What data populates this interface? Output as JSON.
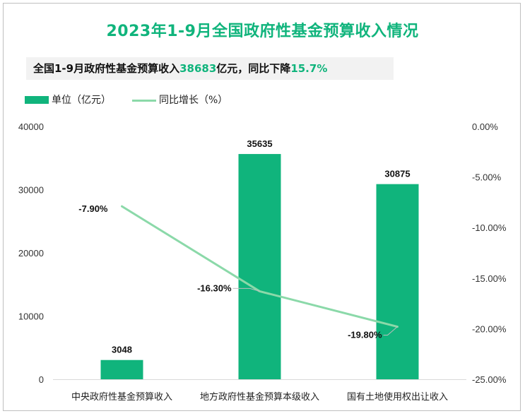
{
  "title_prefix": "2023年1-9月全国政府性基金预算收入情况",
  "subtitle": {
    "part1": "全国1-9月政府性基金预算收入",
    "value": "38683",
    "part2": "亿元，同比下降",
    "pct": "15.7%"
  },
  "colors": {
    "bar": "#10b47c",
    "line": "#8bd9a9",
    "accent": "#10b47c"
  },
  "chart_data": {
    "type": "bar",
    "categories": [
      "中央政府性基金预算收入",
      "地方政府性基金预算本级收入",
      "国有土地使用权出让收入"
    ],
    "series": [
      {
        "name": "单位（亿元）",
        "type": "bar",
        "axis": "left",
        "values": [
          3048,
          35635,
          30875
        ],
        "labels": [
          "3048",
          "35635",
          "30875"
        ]
      },
      {
        "name": "同比增长（%）",
        "type": "line",
        "axis": "right",
        "values": [
          -7.9,
          -16.3,
          -19.8
        ],
        "labels": [
          "-7.90%",
          "-16.30%",
          "-19.80%"
        ]
      }
    ],
    "y_left": {
      "min": 0,
      "max": 40000,
      "ticks": [
        0,
        10000,
        20000,
        30000,
        40000
      ],
      "tick_labels": [
        "0",
        "10000",
        "20000",
        "30000",
        "40000"
      ]
    },
    "y_right": {
      "min": -25,
      "max": 0,
      "ticks": [
        0,
        -5,
        -10,
        -15,
        -20,
        -25
      ],
      "tick_labels": [
        "0.00%",
        "-5.00%",
        "-10.00%",
        "-15.00%",
        "-20.00%",
        "-25.00%"
      ]
    },
    "legend_position": "top-left",
    "grid": false
  }
}
